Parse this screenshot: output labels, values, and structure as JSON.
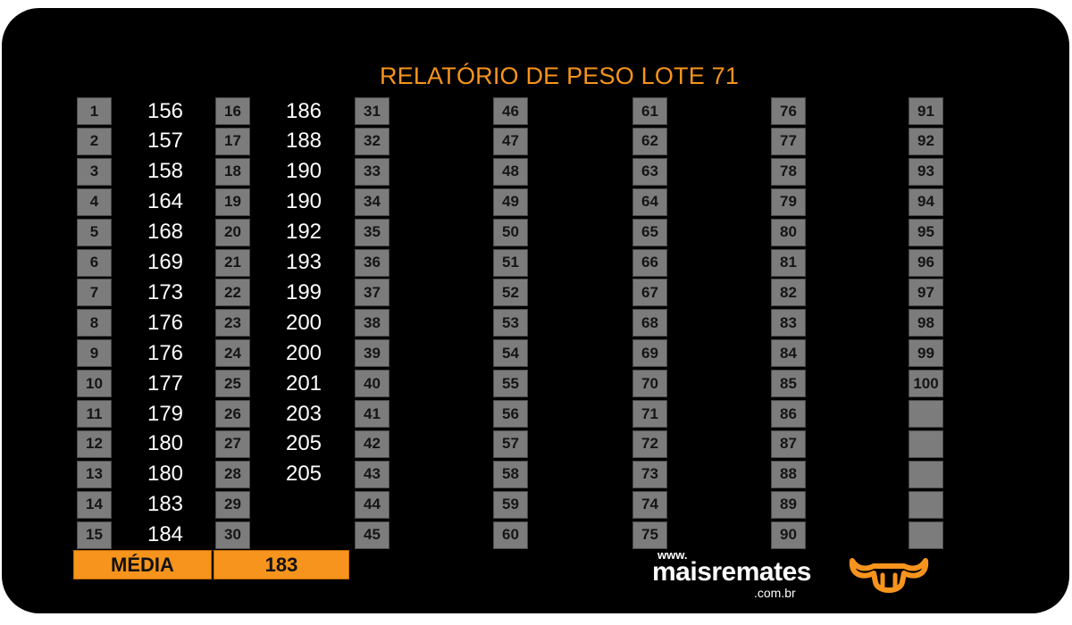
{
  "title": "RELATÓRIO DE PESO LOTE 71",
  "colors": {
    "accent": "#f7941d",
    "cell": "#7c7c7c",
    "background": "#000000"
  },
  "columns": [
    {
      "numbers": [
        "1",
        "2",
        "3",
        "4",
        "5",
        "6",
        "7",
        "8",
        "9",
        "10",
        "11",
        "12",
        "13",
        "14",
        "15"
      ],
      "weights": [
        "156",
        "157",
        "158",
        "164",
        "168",
        "169",
        "173",
        "176",
        "176",
        "177",
        "179",
        "180",
        "180",
        "183",
        "184"
      ]
    },
    {
      "numbers": [
        "16",
        "17",
        "18",
        "19",
        "20",
        "21",
        "22",
        "23",
        "24",
        "25",
        "26",
        "27",
        "28",
        "29",
        "30"
      ],
      "weights": [
        "186",
        "188",
        "190",
        "190",
        "192",
        "193",
        "199",
        "200",
        "200",
        "201",
        "203",
        "205",
        "205",
        "",
        ""
      ]
    },
    {
      "numbers": [
        "31",
        "32",
        "33",
        "34",
        "35",
        "36",
        "37",
        "38",
        "39",
        "40",
        "41",
        "42",
        "43",
        "44",
        "45"
      ],
      "weights": []
    },
    {
      "numbers": [
        "46",
        "47",
        "48",
        "49",
        "50",
        "51",
        "52",
        "53",
        "54",
        "55",
        "56",
        "57",
        "58",
        "59",
        "60"
      ],
      "weights": []
    },
    {
      "numbers": [
        "61",
        "62",
        "63",
        "64",
        "65",
        "66",
        "67",
        "68",
        "69",
        "70",
        "71",
        "72",
        "73",
        "74",
        "75"
      ],
      "weights": []
    },
    {
      "numbers": [
        "76",
        "77",
        "78",
        "79",
        "80",
        "81",
        "82",
        "83",
        "84",
        "85",
        "86",
        "87",
        "88",
        "89",
        "90"
      ],
      "weights": []
    },
    {
      "numbers": [
        "91",
        "92",
        "93",
        "94",
        "95",
        "96",
        "97",
        "98",
        "99",
        "100",
        "",
        "",
        "",
        "",
        ""
      ],
      "weights": []
    }
  ],
  "media": {
    "label": "MÉDIA",
    "value": "183"
  },
  "logo": {
    "www": "www.",
    "brand": "maisremates",
    "domain": ".com.br",
    "icon": "bull-horns-icon"
  }
}
